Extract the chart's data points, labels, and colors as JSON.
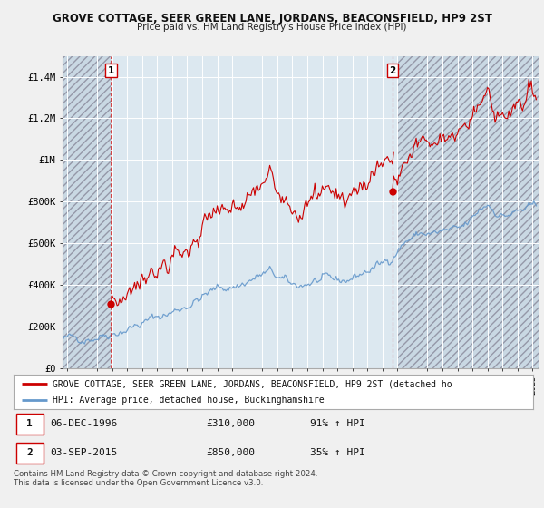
{
  "title": "GROVE COTTAGE, SEER GREEN LANE, JORDANS, BEACONSFIELD, HP9 2ST",
  "subtitle": "Price paid vs. HM Land Registry's House Price Index (HPI)",
  "ylim": [
    0,
    1500000
  ],
  "yticks": [
    0,
    200000,
    400000,
    600000,
    800000,
    1000000,
    1200000,
    1400000
  ],
  "ytick_labels": [
    "£0",
    "£200K",
    "£400K",
    "£600K",
    "£800K",
    "£1M",
    "£1.2M",
    "£1.4M"
  ],
  "sale1_year": 1996.92,
  "sale1_price": 310000,
  "sale2_year": 2015.67,
  "sale2_price": 850000,
  "xmin": 1993.7,
  "xmax": 2025.4,
  "legend1_label": "GROVE COTTAGE, SEER GREEN LANE, JORDANS, BEACONSFIELD, HP9 2ST (detached ho",
  "legend2_label": "HPI: Average price, detached house, Buckinghamshire",
  "red_color": "#cc0000",
  "blue_color": "#6699cc",
  "hatch_color": "#c8d8e8",
  "plot_bg": "#dce8f0",
  "grid_color": "#ffffff",
  "footnote": "Contains HM Land Registry data © Crown copyright and database right 2024.\nThis data is licensed under the Open Government Licence v3.0."
}
